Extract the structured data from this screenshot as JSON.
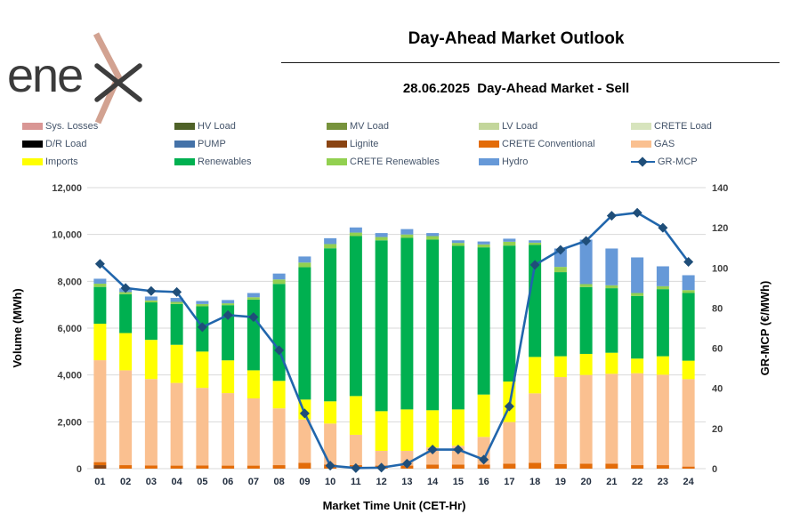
{
  "header": {
    "logo_text": "ene",
    "title": "Day-Ahead Market Outlook",
    "subtitle": "28.06.2025  Day-Ahead Market - Sell"
  },
  "colors": {
    "mcp_line": "#2166ac",
    "mcp_marker": "#1f4e79",
    "legend_text": "#44546a",
    "gridline": "#d9d9d9"
  },
  "legend": {
    "items": [
      {
        "label": "Sys. Losses",
        "color": "#d99694",
        "type": "swatch"
      },
      {
        "label": "HV Load",
        "color": "#4f6228",
        "type": "swatch"
      },
      {
        "label": "MV Load",
        "color": "#77933c",
        "type": "swatch"
      },
      {
        "label": "LV Load",
        "color": "#c3d69b",
        "type": "swatch"
      },
      {
        "label": "CRETE Load",
        "color": "#d7e4bd",
        "type": "swatch"
      },
      {
        "label": "D/R Load",
        "color": "#000000",
        "type": "swatch"
      },
      {
        "label": "PUMP",
        "color": "#4472a8",
        "type": "swatch"
      },
      {
        "label": "Lignite",
        "color": "#8a4412",
        "type": "swatch"
      },
      {
        "label": "CRETE Conventional",
        "color": "#e36c09",
        "type": "swatch"
      },
      {
        "label": "GAS",
        "color": "#fac090",
        "type": "swatch"
      },
      {
        "label": "Imports",
        "color": "#ffff00",
        "type": "swatch"
      },
      {
        "label": "Renewables",
        "color": "#00b050",
        "type": "swatch"
      },
      {
        "label": "CRETE Renewables",
        "color": "#92d050",
        "type": "swatch"
      },
      {
        "label": "Hydro",
        "color": "#6699d8",
        "type": "swatch"
      },
      {
        "label": "GR-MCP",
        "color": "#2166ac",
        "type": "line"
      }
    ]
  },
  "chart_data": {
    "type": "combo-stacked-bar-line",
    "categories": [
      "01",
      "02",
      "03",
      "04",
      "05",
      "06",
      "07",
      "08",
      "09",
      "10",
      "11",
      "12",
      "13",
      "14",
      "15",
      "16",
      "17",
      "18",
      "19",
      "20",
      "21",
      "22",
      "23",
      "24"
    ],
    "series": [
      {
        "key": "lignite",
        "name": "Lignite",
        "color": "#8a4412",
        "values": [
          150,
          0,
          0,
          0,
          0,
          0,
          0,
          0,
          0,
          0,
          0,
          0,
          0,
          0,
          0,
          0,
          0,
          0,
          0,
          0,
          0,
          0,
          0,
          0
        ]
      },
      {
        "key": "crete-conventional",
        "name": "CRETE Conventional",
        "color": "#e36c09",
        "values": [
          130,
          150,
          140,
          130,
          140,
          130,
          130,
          150,
          250,
          180,
          150,
          130,
          130,
          175,
          175,
          175,
          215,
          250,
          200,
          215,
          215,
          150,
          150,
          90
        ]
      },
      {
        "key": "gas",
        "name": "GAS",
        "color": "#fac090",
        "values": [
          4350,
          4050,
          3685,
          3530,
          3310,
          3095,
          2870,
          2425,
          1850,
          1745,
          1295,
          630,
          630,
          735,
          800,
          1180,
          1775,
          2965,
          3710,
          3785,
          3835,
          3925,
          3860,
          3730
        ]
      },
      {
        "key": "imports",
        "name": "Imports",
        "color": "#ffff00",
        "values": [
          1560,
          1590,
          1675,
          1630,
          1550,
          1400,
          1200,
          1175,
          850,
          950,
          1655,
          1695,
          1770,
          1585,
          1555,
          1810,
          1730,
          1555,
          890,
          900,
          900,
          625,
          790,
          790
        ]
      },
      {
        "key": "renewables",
        "name": "Renewables",
        "color": "#00b050",
        "values": [
          1570,
          1660,
          1600,
          1740,
          1930,
          2355,
          3020,
          4140,
          5650,
          6535,
          6830,
          7295,
          7325,
          7285,
          6985,
          6285,
          5805,
          4780,
          3590,
          2855,
          2755,
          2675,
          2865,
          2890
        ]
      },
      {
        "key": "crete-renewables",
        "name": "CRETE Renewables",
        "color": "#92d050",
        "values": [
          140,
          90,
          85,
          90,
          100,
          80,
          100,
          190,
          200,
          180,
          150,
          140,
          145,
          150,
          125,
          125,
          165,
          100,
          225,
          125,
          125,
          125,
          125,
          125
        ]
      },
      {
        "key": "hydro",
        "name": "Hydro",
        "color": "#6699d8",
        "values": [
          210,
          160,
          165,
          170,
          130,
          140,
          180,
          250,
          260,
          250,
          220,
          170,
          230,
          130,
          110,
          125,
          130,
          100,
          785,
          1900,
          1570,
          1520,
          850,
          635
        ]
      }
    ],
    "line_series": {
      "name": "GR-MCP",
      "color": "#2166ac",
      "marker_color": "#1f4e79",
      "values": [
        102,
        90,
        88.5,
        88,
        70.5,
        76.5,
        75.5,
        59,
        27.5,
        1.5,
        0.3,
        0.5,
        2.5,
        9.5,
        9.5,
        4.5,
        31,
        101.5,
        109,
        113.5,
        126,
        127.5,
        120,
        103
      ]
    },
    "left_axis": {
      "label": "Volume (MWh)",
      "min": 0,
      "max": 12000,
      "step": 2000,
      "tick_labels": [
        "0",
        "2,000",
        "4,000",
        "6,000",
        "8,000",
        "10,000",
        "12,000"
      ]
    },
    "right_axis": {
      "label": "GR-MCP (€/MWh)",
      "min": 0,
      "max": 140,
      "step": 20,
      "tick_labels": [
        "0",
        "20",
        "40",
        "60",
        "80",
        "100",
        "120",
        "140"
      ]
    },
    "x_axis": {
      "label": "Market Time Unit (CET-Hr)"
    },
    "grid": true,
    "legend_position": "top"
  }
}
